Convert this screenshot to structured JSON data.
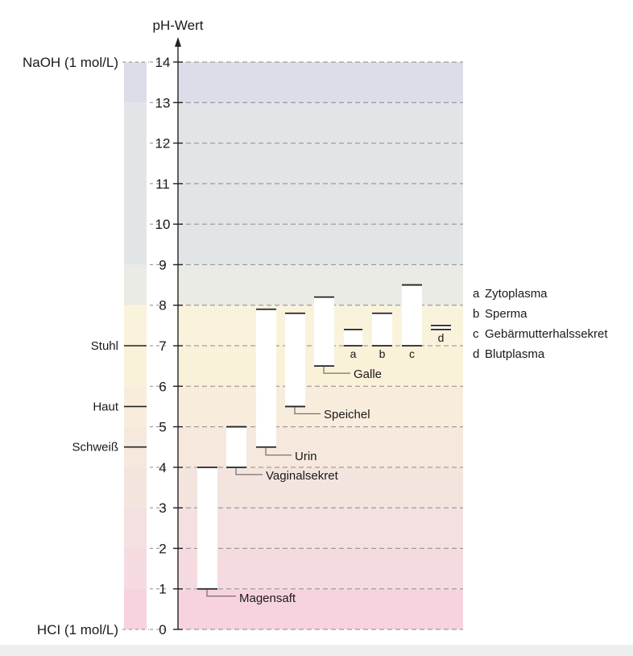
{
  "chart_data": {
    "type": "range-bar",
    "title": "pH-Wert",
    "ylim": [
      0,
      14
    ],
    "y_ticks": [
      "0",
      "1",
      "2",
      "3",
      "4",
      "5",
      "6",
      "7",
      "8",
      "9",
      "10",
      "11",
      "12",
      "13",
      "14"
    ],
    "grid": true,
    "background_bands": [
      {
        "from": 0,
        "to": 1,
        "color": "#f6d3df"
      },
      {
        "from": 1,
        "to": 2,
        "color": "#f5dbe0"
      },
      {
        "from": 2,
        "to": 3,
        "color": "#f4e0e0"
      },
      {
        "from": 3,
        "to": 4,
        "color": "#f3e5de"
      },
      {
        "from": 4,
        "to": 5,
        "color": "#f6e8dc"
      },
      {
        "from": 5,
        "to": 6,
        "color": "#f8eddc"
      },
      {
        "from": 6,
        "to": 7,
        "color": "#f9f1d8"
      },
      {
        "from": 7,
        "to": 8,
        "color": "#faf3dc"
      },
      {
        "from": 8,
        "to": 9,
        "color": "#eaebe4"
      },
      {
        "from": 9,
        "to": 13,
        "color": "#e1e5e8"
      },
      {
        "from": 13,
        "to": 14,
        "color": "#dddde9"
      }
    ],
    "left_markers": [
      {
        "label": "NaOH (1 mol/L)",
        "value": 14
      },
      {
        "label": "Stuhl",
        "value": 7
      },
      {
        "label": "Haut",
        "value": 5.5
      },
      {
        "label": "Schweiß",
        "value": 4.5
      },
      {
        "label": "HCI (1 mol/L)",
        "value": 0
      }
    ],
    "ranges": [
      {
        "name": "Magensaft",
        "low": 1.0,
        "high": 4.0
      },
      {
        "name": "Vaginalsekret",
        "low": 4.0,
        "high": 5.0
      },
      {
        "name": "Urin",
        "low": 4.5,
        "high": 7.9
      },
      {
        "name": "Speichel",
        "low": 5.5,
        "high": 7.8
      },
      {
        "name": "Galle",
        "low": 6.5,
        "high": 8.2
      },
      {
        "name": "a",
        "low": 7.0,
        "high": 7.4
      },
      {
        "name": "b",
        "low": 7.0,
        "high": 7.8
      },
      {
        "name": "c",
        "low": 7.0,
        "high": 8.5
      },
      {
        "name": "d",
        "low": 7.4,
        "high": 7.5
      }
    ],
    "legend": [
      {
        "key": "a",
        "text": "Zytoplasma"
      },
      {
        "key": "b",
        "text": "Sperma"
      },
      {
        "key": "c",
        "text": "Gebärmutterhalssekret"
      },
      {
        "key": "d",
        "text": "Blutplasma"
      }
    ]
  }
}
